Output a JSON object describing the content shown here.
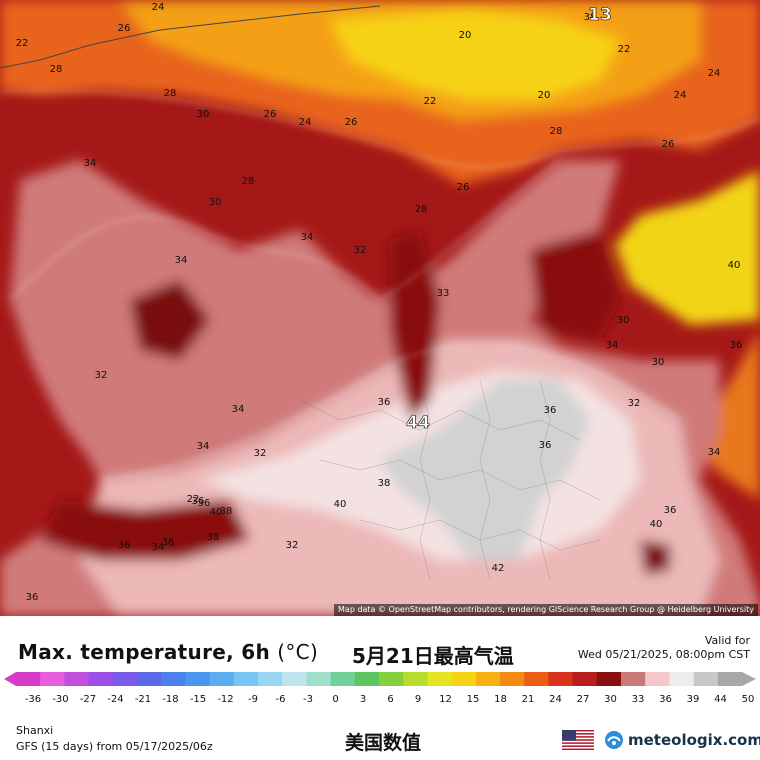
{
  "map": {
    "region_label": "Shanxi",
    "attribution": "Map data © OpenStreetMap contributors, rendering GIScience Research Group @ Heidelberg University",
    "contour_labels": [
      "24",
      "26",
      "22",
      "20",
      "28",
      "22",
      "24",
      "22",
      "20",
      "24",
      "26",
      "24",
      "26",
      "28",
      "30",
      "28",
      "26",
      "34",
      "28",
      "30",
      "26",
      "34",
      "28",
      "34",
      "32",
      "30",
      "34",
      "32",
      "33",
      "36",
      "30",
      "34",
      "36",
      "36",
      "32",
      "32",
      "36",
      "34",
      "44",
      "38",
      "40",
      "42",
      "22",
      "36",
      "40",
      "36",
      "40",
      "38",
      "36",
      "34",
      "38",
      "36",
      "36",
      "34",
      "32",
      "36",
      "40",
      "38",
      "13"
    ]
  },
  "panel": {
    "title": "Max. temperature, 6h",
    "unit": "(°C)",
    "subtitle": "5月21日最高气温",
    "valid_label": "Valid for",
    "valid_date": "Wed 05/21/2025, 08:00pm CST",
    "region": "Shanxi",
    "model_line": "GFS (15 days) from 05/17/2025/06z",
    "center_text": "美国数值",
    "brand": "meteologix.com",
    "flag_icon": "us-flag-icon",
    "logo_icon": "meteologix-logo-icon"
  },
  "legend": {
    "ticks": [
      "-36",
      "-30",
      "-27",
      "-24",
      "-21",
      "-18",
      "-15",
      "-12",
      "-9",
      "-6",
      "-3",
      "0",
      "3",
      "6",
      "9",
      "12",
      "15",
      "18",
      "21",
      "24",
      "27",
      "30",
      "33",
      "36",
      "39",
      "44",
      "50"
    ],
    "colors": [
      "#d63cc8",
      "#e460dc",
      "#c050e0",
      "#9a50e8",
      "#7a5ae6",
      "#5c68e6",
      "#4c80ea",
      "#4a96ee",
      "#5aaef0",
      "#78c4f2",
      "#9ad6f2",
      "#bfe6ee",
      "#9ee0cc",
      "#6fd09a",
      "#5cc460",
      "#86d040",
      "#b8dc2a",
      "#e6e420",
      "#f6d414",
      "#f6b014",
      "#f28a14",
      "#ea5e14",
      "#d8321a",
      "#b81c1c",
      "#8a1010",
      "#c87a7a",
      "#f4c8c8",
      "#ececec",
      "#c8c8c8",
      "#a8a8a8"
    ]
  }
}
